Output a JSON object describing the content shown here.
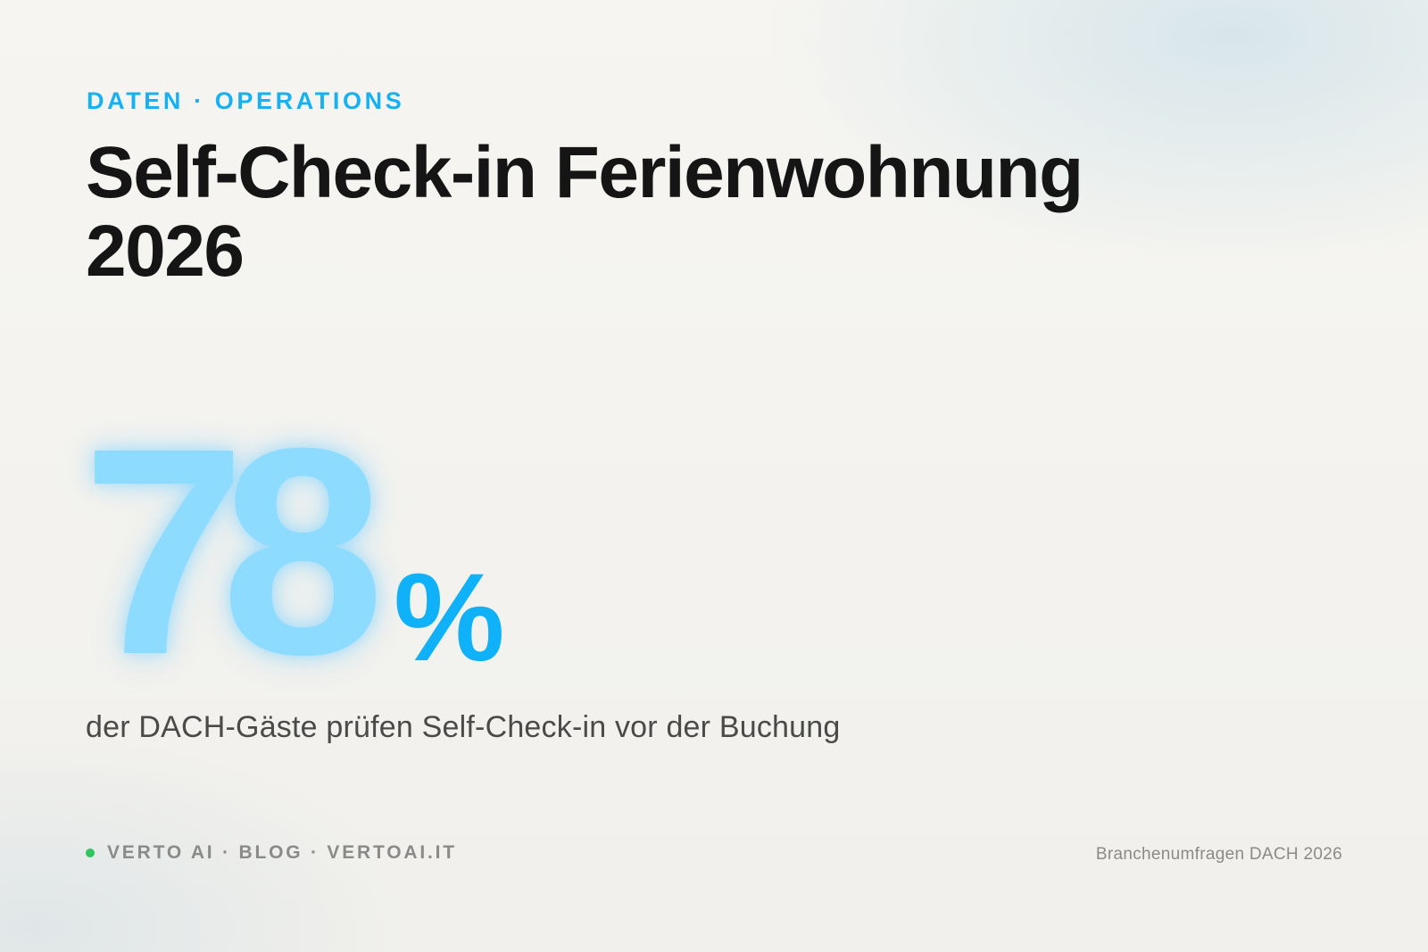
{
  "header": {
    "kicker": "DATEN · OPERATIONS",
    "title": "Self-Check-in Ferienwohnung 2026"
  },
  "stat": {
    "value": "78",
    "unit": "%",
    "description": "der DACH-Gäste prüfen Self-Check-in vor der Buchung"
  },
  "footer": {
    "brand": "VERTO AI · BLOG · VERTOAI.IT",
    "source": "Branchenumfragen DACH 2026"
  },
  "colors": {
    "accent": "#14b1f5",
    "stat_glow": "#8ddbff",
    "status_dot": "#2ec55f",
    "title": "#151515",
    "muted": "#8a8a8a"
  }
}
